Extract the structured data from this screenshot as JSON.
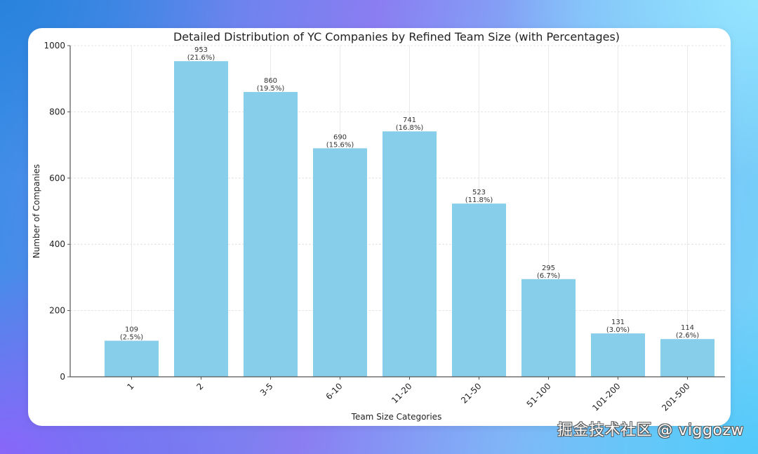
{
  "chart_data": {
    "type": "bar",
    "title": "Detailed Distribution of YC Companies by Refined Team Size (with Percentages)",
    "xlabel": "Team Size Categories",
    "ylabel": "Number of Companies",
    "categories": [
      "1",
      "2",
      "3-5",
      "6-10",
      "11-20",
      "21-50",
      "51-100",
      "101-200",
      "201-500"
    ],
    "values": [
      109,
      953,
      860,
      690,
      741,
      523,
      295,
      131,
      114
    ],
    "percentages": [
      "2.5%",
      "21.6%",
      "19.5%",
      "15.6%",
      "16.8%",
      "11.8%",
      "6.7%",
      "3.0%",
      "2.6%"
    ],
    "ylim": [
      0,
      1000
    ],
    "yticks": [
      0,
      200,
      400,
      600,
      800,
      1000
    ],
    "grid": true,
    "bar_color": "#87ceeb",
    "xtick_rotation": "45deg"
  },
  "watermark": "掘金技术社区 @ viggozw"
}
